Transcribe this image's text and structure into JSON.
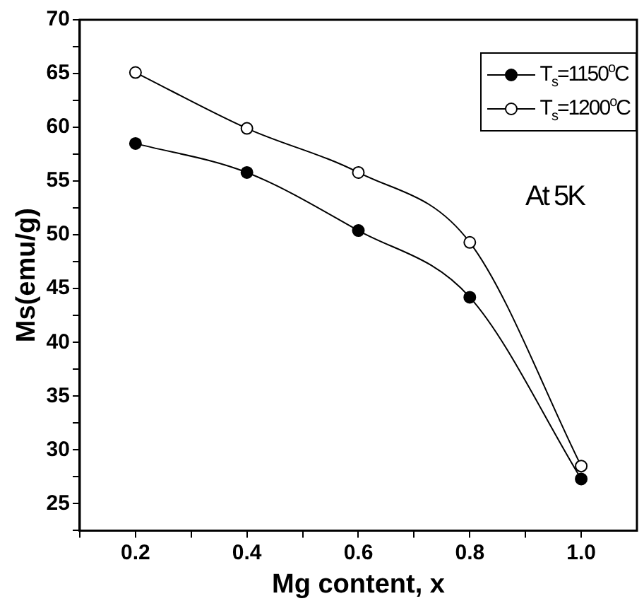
{
  "chart_data": {
    "type": "line",
    "xlabel": "Mg content, x",
    "ylabel": "Ms(emu/g)",
    "x": [
      0.2,
      0.4,
      0.6,
      0.8,
      1.0
    ],
    "series": [
      {
        "name": "T$_{s}$=1150$^{o}$C",
        "color": "#000000",
        "values": [
          58.5,
          55.8,
          50.4,
          44.2,
          27.3
        ]
      },
      {
        "name": "T$_{s}$=1200$^{o}$C",
        "color": "#000000",
        "values": [
          65.1,
          59.9,
          55.8,
          49.3,
          28.5
        ]
      }
    ],
    "xlim": [
      0.1,
      1.1
    ],
    "xticks": [
      {
        "value": 0.1,
        "label": null
      },
      0.2,
      {
        "value": 0.3,
        "label": null
      },
      0.4,
      {
        "value": 0.5,
        "label": null
      },
      0.6,
      {
        "value": 0.7,
        "label": null
      },
      0.8,
      {
        "value": 0.9,
        "label": null
      },
      {
        "value": 1,
        "label": "1.0"
      }
    ],
    "ylim": [
      22.5,
      70
    ],
    "yticks": [
      {
        "value": 22.5,
        "label": null
      },
      25,
      {
        "value": 27.5,
        "label": null
      },
      30,
      {
        "value": 32.5,
        "label": null
      },
      35,
      {
        "value": 37.5,
        "label": null
      },
      40,
      {
        "value": 42.5,
        "label": null
      },
      45,
      {
        "value": 47.5,
        "label": null
      },
      50,
      {
        "value": 52.5,
        "label": null
      },
      55,
      {
        "value": 57.5,
        "label": null
      },
      60,
      {
        "value": 62.5,
        "label": null
      },
      65,
      {
        "value": 67.5,
        "label": null
      },
      70
    ],
    "annotations": [
      "At 5K"
    ],
    "legend": "top right",
    "grid": false,
    "marker": "circle",
    "line_style": "solid"
  }
}
